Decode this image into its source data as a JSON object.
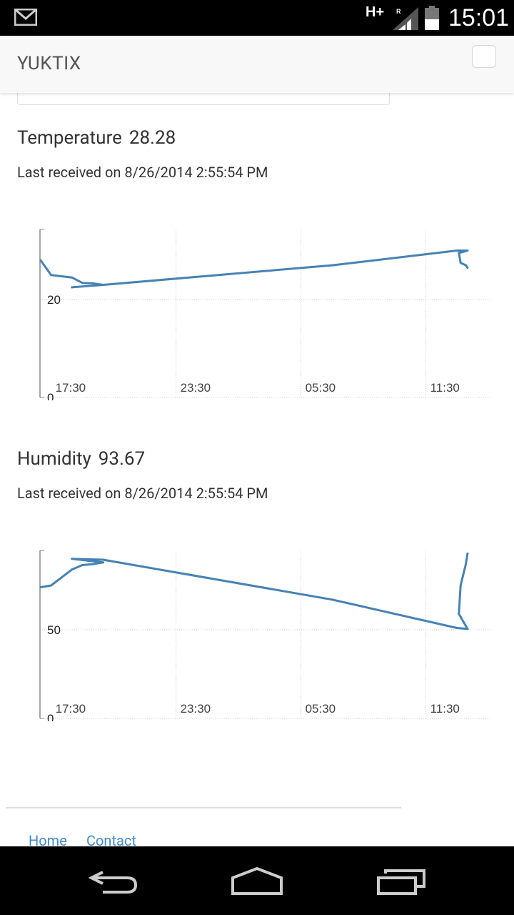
{
  "status_bar": {
    "network": "H+",
    "roaming": "R",
    "time": "15:01"
  },
  "app": {
    "brand": "YUKTIX"
  },
  "temperature": {
    "label": "Temperature",
    "value": "28.28",
    "received": "Last received on 8/26/2014 2:55:54 PM"
  },
  "humidity": {
    "label": "Humidity",
    "value": "93.67",
    "received": "Last received on 8/26/2014 2:55:54 PM"
  },
  "chart_data": [
    {
      "type": "line",
      "x_ticks": [
        "17:30",
        "23:30",
        "05:30",
        "11:30"
      ],
      "y_ticks": [
        0,
        20
      ],
      "color": "#4682b4",
      "grid": true,
      "series": [
        {
          "x": [
            "17:00",
            "17:30",
            "18:30",
            "19:00",
            "19:30",
            "20:00",
            "18:30",
            "20:00",
            "07:00",
            "13:00",
            "13:30",
            "13:05",
            "13:10",
            "13:25",
            "13:30"
          ],
          "values": [
            28,
            25,
            24.5,
            23.4,
            23.3,
            23,
            22.5,
            23,
            27,
            30,
            30,
            29.5,
            27.5,
            27,
            26.5
          ]
        }
      ]
    },
    {
      "type": "line",
      "x_ticks": [
        "17:30",
        "23:30",
        "05:30",
        "11:30"
      ],
      "y_ticks": [
        50,
        0
      ],
      "color": "#4682b4",
      "grid": true,
      "series": [
        {
          "x": [
            "17:00",
            "17:30",
            "18:30",
            "19:00",
            "19:30",
            "20:00",
            "18:30",
            "20:00",
            "07:00",
            "13:00",
            "13:30",
            "13:05",
            "13:10",
            "13:25",
            "13:30"
          ],
          "values": [
            74,
            75,
            84,
            86.5,
            87,
            88,
            90,
            89.5,
            67,
            51,
            50.5,
            59,
            75,
            87,
            93
          ]
        }
      ]
    }
  ],
  "footer": {
    "links": [
      "Home",
      "Contact"
    ]
  }
}
